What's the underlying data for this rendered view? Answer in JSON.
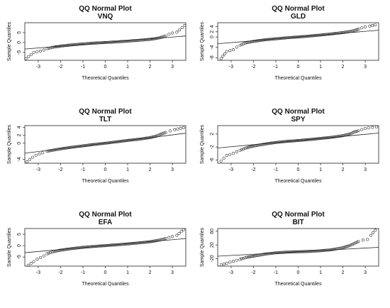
{
  "chart_data": [
    {
      "type": "scatter",
      "title": "QQ Normal Plot",
      "subtitle": "VNQ",
      "xlabel": "Theoretical Quantiles",
      "ylabel": "Sample Quantiles",
      "xlim": [
        -3.6,
        3.6
      ],
      "ylim": [
        -9,
        10
      ],
      "xticks": [
        -3,
        -2,
        -1,
        0,
        1,
        2,
        3
      ],
      "yticks": [
        -5,
        0,
        5
      ],
      "points": [
        [
          -3.55,
          -8.2
        ],
        [
          -3.2,
          -5.0
        ],
        [
          -3.05,
          -4.6
        ],
        [
          -2.9,
          -4.3
        ],
        [
          -2.75,
          -3.8
        ],
        [
          -2.6,
          -3.1
        ],
        [
          -2.45,
          -2.7
        ],
        [
          -2.3,
          -2.3
        ],
        [
          -2.0,
          -1.8
        ],
        [
          -1.5,
          -1.2
        ],
        [
          -1.0,
          -0.7
        ],
        [
          -0.5,
          -0.3
        ],
        [
          0.0,
          0.0
        ],
        [
          0.5,
          0.3
        ],
        [
          1.0,
          0.7
        ],
        [
          1.5,
          1.1
        ],
        [
          2.0,
          1.6
        ],
        [
          2.3,
          2.1
        ],
        [
          2.5,
          2.6
        ],
        [
          2.7,
          3.3
        ],
        [
          2.85,
          4.2
        ],
        [
          3.0,
          4.8
        ],
        [
          3.2,
          5.2
        ],
        [
          3.55,
          8.6
        ]
      ],
      "reference_line": [
        [
          -3.6,
          -3.3
        ],
        [
          3.6,
          3.3
        ]
      ]
    },
    {
      "type": "scatter",
      "title": "QQ Normal Plot",
      "subtitle": "GLD",
      "xlabel": "Theoretical Quantiles",
      "ylabel": "Sample Quantiles",
      "xlim": [
        -3.6,
        3.6
      ],
      "ylim": [
        -9,
        5.5
      ],
      "xticks": [
        -3,
        -2,
        -1,
        0,
        1,
        2,
        3
      ],
      "yticks": [
        -8,
        -4,
        0,
        2,
        4
      ],
      "points": [
        [
          -3.45,
          -8.3
        ],
        [
          -3.2,
          -5.6
        ],
        [
          -3.05,
          -5.2
        ],
        [
          -2.9,
          -4.9
        ],
        [
          -2.75,
          -3.9
        ],
        [
          -2.6,
          -3.2
        ],
        [
          -2.45,
          -2.6
        ],
        [
          -2.3,
          -2.2
        ],
        [
          -2.0,
          -1.7
        ],
        [
          -1.5,
          -1.1
        ],
        [
          -1.0,
          -0.7
        ],
        [
          -0.5,
          -0.3
        ],
        [
          0.0,
          0.0
        ],
        [
          0.5,
          0.35
        ],
        [
          1.0,
          0.75
        ],
        [
          1.5,
          1.2
        ],
        [
          2.0,
          1.7
        ],
        [
          2.3,
          2.1
        ],
        [
          2.5,
          2.5
        ],
        [
          2.7,
          3.0
        ],
        [
          2.85,
          3.5
        ],
        [
          3.0,
          3.9
        ],
        [
          3.2,
          4.2
        ],
        [
          3.45,
          4.6
        ]
      ],
      "reference_line": [
        [
          -3.6,
          -2.6
        ],
        [
          3.6,
          2.6
        ]
      ]
    },
    {
      "type": "scatter",
      "title": "QQ Normal Plot",
      "subtitle": "TLT",
      "xlabel": "Theoretical Quantiles",
      "ylabel": "Sample Quantiles",
      "xlim": [
        -3.6,
        3.6
      ],
      "ylim": [
        -5,
        4.4
      ],
      "xticks": [
        -3,
        -2,
        -1,
        0,
        1,
        2,
        3
      ],
      "yticks": [
        -4,
        0,
        2,
        4
      ],
      "points": [
        [
          -3.5,
          -4.6
        ],
        [
          -3.25,
          -3.5
        ],
        [
          -3.1,
          -3.0
        ],
        [
          -2.95,
          -2.7
        ],
        [
          -2.8,
          -2.4
        ],
        [
          -2.6,
          -2.0
        ],
        [
          -2.4,
          -1.8
        ],
        [
          -2.2,
          -1.6
        ],
        [
          -2.0,
          -1.4
        ],
        [
          -1.5,
          -1.0
        ],
        [
          -1.0,
          -0.65
        ],
        [
          -0.5,
          -0.3
        ],
        [
          0.0,
          0.0
        ],
        [
          0.5,
          0.35
        ],
        [
          1.0,
          0.7
        ],
        [
          1.5,
          1.0
        ],
        [
          2.0,
          1.4
        ],
        [
          2.3,
          1.8
        ],
        [
          2.5,
          2.3
        ],
        [
          2.7,
          2.7
        ],
        [
          2.9,
          3.1
        ],
        [
          3.1,
          3.4
        ],
        [
          3.5,
          3.9
        ]
      ],
      "reference_line": [
        [
          -3.6,
          -2.5
        ],
        [
          3.6,
          2.5
        ]
      ]
    },
    {
      "type": "scatter",
      "title": "QQ Normal Plot",
      "subtitle": "SPY",
      "xlabel": "Theoretical Quantiles",
      "ylabel": "Sample Quantiles",
      "xlim": [
        -3.6,
        3.6
      ],
      "ylim": [
        -7,
        4.6
      ],
      "xticks": [
        -3,
        -2,
        -1,
        0,
        1,
        2,
        3
      ],
      "yticks": [
        -6,
        -2,
        2
      ],
      "points": [
        [
          -3.45,
          -6.3
        ],
        [
          -3.2,
          -4.6
        ],
        [
          -3.05,
          -4.3
        ],
        [
          -2.9,
          -3.9
        ],
        [
          -2.75,
          -3.5
        ],
        [
          -2.6,
          -3.0
        ],
        [
          -2.45,
          -2.6
        ],
        [
          -2.3,
          -2.2
        ],
        [
          -2.0,
          -1.7
        ],
        [
          -1.5,
          -1.1
        ],
        [
          -1.0,
          -0.6
        ],
        [
          -0.5,
          -0.25
        ],
        [
          0.0,
          0.0
        ],
        [
          0.5,
          0.3
        ],
        [
          1.0,
          0.65
        ],
        [
          1.5,
          1.0
        ],
        [
          2.0,
          1.5
        ],
        [
          2.3,
          2.0
        ],
        [
          2.5,
          2.6
        ],
        [
          2.7,
          3.0
        ],
        [
          2.85,
          3.4
        ],
        [
          3.0,
          3.7
        ],
        [
          3.15,
          3.9
        ],
        [
          3.5,
          4.2
        ]
      ],
      "reference_line": [
        [
          -3.6,
          -2.3
        ],
        [
          3.6,
          2.3
        ]
      ]
    },
    {
      "type": "scatter",
      "title": "QQ Normal Plot",
      "subtitle": "EFA",
      "xlabel": "Theoretical Quantiles",
      "ylabel": "Sample Quantiles",
      "xlim": [
        -3.6,
        3.6
      ],
      "ylim": [
        -9,
        7.5
      ],
      "xticks": [
        -3,
        -2,
        -1,
        0,
        1,
        2,
        3
      ],
      "yticks": [
        -5,
        0,
        5
      ],
      "points": [
        [
          -3.45,
          -8.6
        ],
        [
          -3.2,
          -7.0
        ],
        [
          -3.05,
          -6.0
        ],
        [
          -2.9,
          -5.2
        ],
        [
          -2.75,
          -4.5
        ],
        [
          -2.6,
          -3.6
        ],
        [
          -2.45,
          -3.0
        ],
        [
          -2.3,
          -2.6
        ],
        [
          -2.0,
          -2.0
        ],
        [
          -1.5,
          -1.3
        ],
        [
          -1.0,
          -0.75
        ],
        [
          -0.5,
          -0.35
        ],
        [
          0.0,
          0.0
        ],
        [
          0.5,
          0.35
        ],
        [
          1.0,
          0.75
        ],
        [
          1.5,
          1.2
        ],
        [
          2.0,
          1.7
        ],
        [
          2.3,
          2.2
        ],
        [
          2.5,
          2.6
        ],
        [
          2.7,
          3.1
        ],
        [
          2.85,
          3.6
        ],
        [
          3.0,
          4.0
        ],
        [
          3.2,
          4.5
        ],
        [
          3.5,
          7.0
        ]
      ],
      "reference_line": [
        [
          -3.6,
          -3.1
        ],
        [
          3.6,
          3.1
        ]
      ]
    },
    {
      "type": "scatter",
      "title": "QQ Normal Plot",
      "subtitle": "BIT",
      "xlabel": "Theoretical Quantiles",
      "ylabel": "Sample Quantiles",
      "xlim": [
        -3.6,
        3.6
      ],
      "ylim": [
        -42,
        68
      ],
      "xticks": [
        -3,
        -2,
        -1,
        0,
        1,
        2,
        3
      ],
      "yticks": [
        -20,
        20,
        60
      ],
      "points": [
        [
          -3.45,
          -38
        ],
        [
          -3.2,
          -34
        ],
        [
          -3.05,
          -30
        ],
        [
          -2.9,
          -28
        ],
        [
          -2.75,
          -25
        ],
        [
          -2.6,
          -22
        ],
        [
          -2.45,
          -19
        ],
        [
          -2.3,
          -16
        ],
        [
          -2.0,
          -13
        ],
        [
          -1.5,
          -7
        ],
        [
          -1.0,
          -3
        ],
        [
          -0.5,
          -1
        ],
        [
          0.0,
          0
        ],
        [
          0.5,
          1
        ],
        [
          1.0,
          3
        ],
        [
          1.5,
          6
        ],
        [
          2.0,
          12
        ],
        [
          2.3,
          18
        ],
        [
          2.5,
          24
        ],
        [
          2.7,
          30
        ],
        [
          2.9,
          34
        ],
        [
          3.1,
          36
        ],
        [
          3.25,
          48
        ],
        [
          3.45,
          63
        ]
      ],
      "reference_line": [
        [
          -3.6,
          -13
        ],
        [
          3.6,
          13
        ]
      ]
    }
  ]
}
